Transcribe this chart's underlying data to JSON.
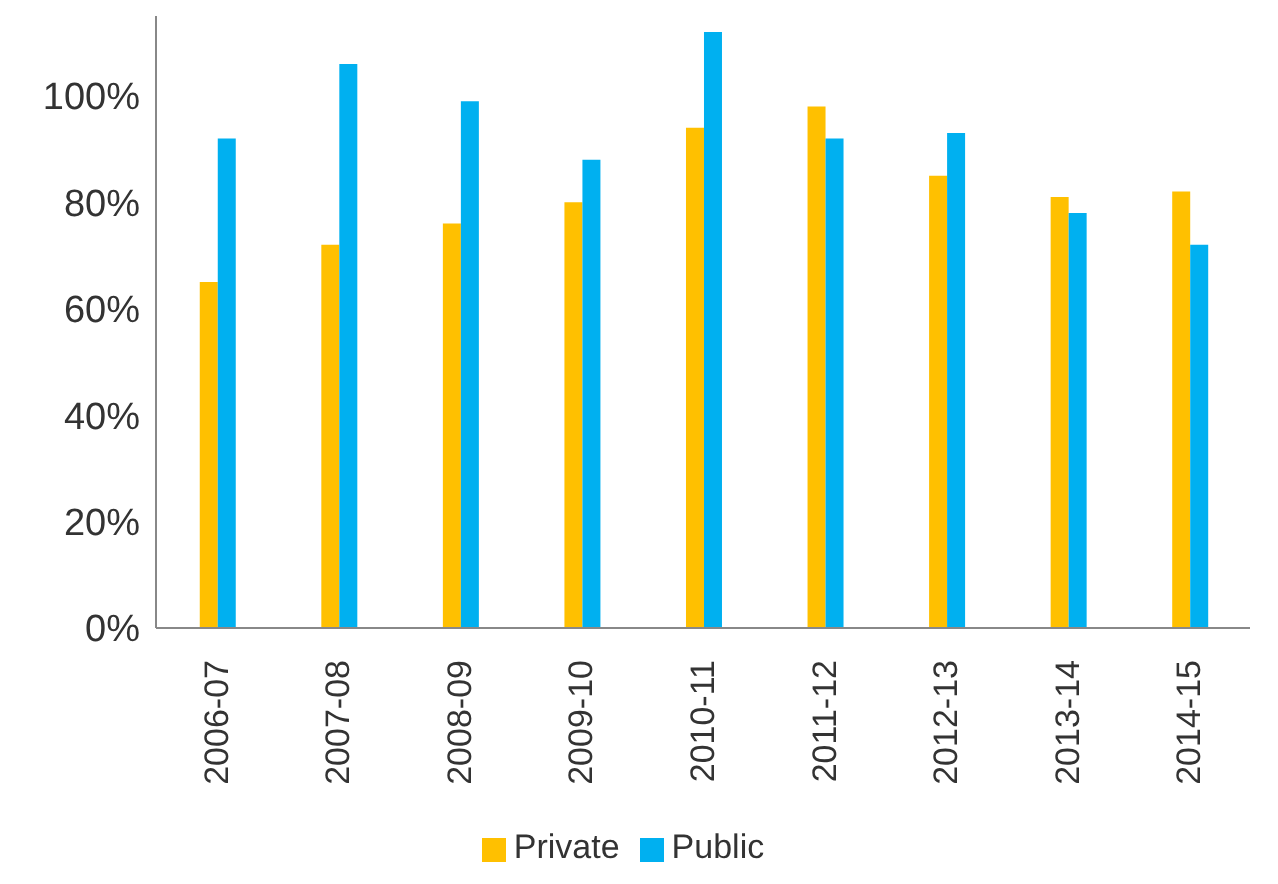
{
  "chart_data": {
    "type": "bar",
    "categories": [
      "2006-07",
      "2007-08",
      "2008-09",
      "2009-10",
      "2010-11",
      "2011-12",
      "2012-13",
      "2013-14",
      "2014-15"
    ],
    "series": [
      {
        "name": "Private",
        "color": "#ffc000",
        "values": [
          65,
          72,
          76,
          80,
          94,
          98,
          85,
          81,
          82
        ]
      },
      {
        "name": "Public",
        "color": "#00b0f0",
        "values": [
          92,
          106,
          99,
          88,
          112,
          92,
          93,
          78,
          72
        ]
      }
    ],
    "ylim": [
      0,
      115
    ],
    "yticks": [
      {
        "value": 0,
        "label": "0%"
      },
      {
        "value": 20,
        "label": "20%"
      },
      {
        "value": 40,
        "label": "40%"
      },
      {
        "value": 60,
        "label": "60%"
      },
      {
        "value": 80,
        "label": "80%"
      },
      {
        "value": 100,
        "label": "100%"
      }
    ],
    "grid": false,
    "legend": "bottom"
  }
}
